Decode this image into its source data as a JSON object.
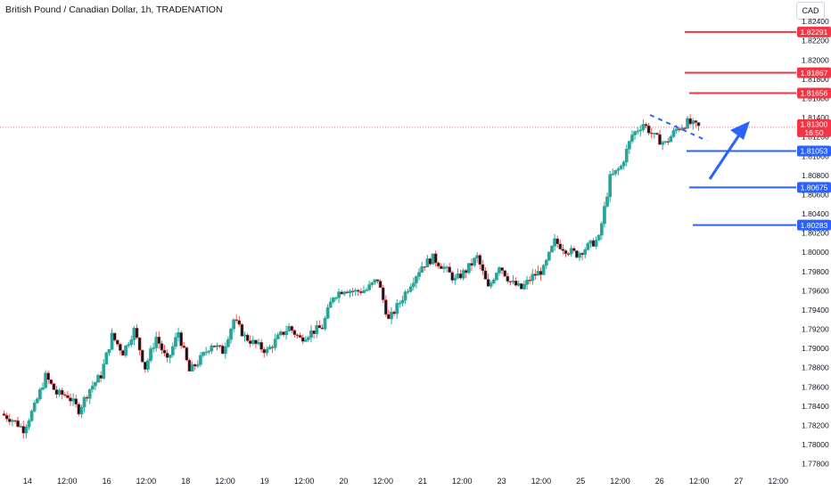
{
  "header": {
    "title": "British Pound / Canadian Dollar, 1h, TRADENATION",
    "currency": "CAD"
  },
  "colors": {
    "up": "#26a69a",
    "down": "#ef5350",
    "candle_body": "#131722",
    "support": "#2962ff",
    "resistance": "#f23645",
    "current_price_line": "#f23645",
    "arrow": "#2962ff"
  },
  "chart_data": {
    "type": "candlestick",
    "title": "British Pound / Canadian Dollar, 1h, TRADENATION",
    "x_tick_labels": [
      "14",
      "12:00",
      "16",
      "12:00",
      "18",
      "12:00",
      "19",
      "12:00",
      "20",
      "12:00",
      "21",
      "12:00",
      "23",
      "12:00",
      "25",
      "12:00",
      "26",
      "12:00",
      "27",
      "12:00"
    ],
    "y_tick_labels": [
      "1.82400",
      "1.82200",
      "1.82000",
      "1.81800",
      "1.81600",
      "1.81400",
      "1.81200",
      "1.81000",
      "1.80800",
      "1.80600",
      "1.80400",
      "1.80200",
      "1.80000",
      "1.79800",
      "1.79600",
      "1.79400",
      "1.79200",
      "1.79000",
      "1.78800",
      "1.78600",
      "1.78400",
      "1.78200",
      "1.78000",
      "1.77800"
    ],
    "ylim": [
      1.7775,
      1.8242
    ],
    "grid": false,
    "price_path": [
      1.7832,
      1.7826,
      1.7816,
      1.7839,
      1.7871,
      1.7853,
      1.7851,
      1.7836,
      1.7858,
      1.7872,
      1.7913,
      1.7896,
      1.7919,
      1.788,
      1.7912,
      1.7886,
      1.7917,
      1.7876,
      1.7889,
      1.7905,
      1.7897,
      1.793,
      1.7912,
      1.7904,
      1.7897,
      1.7911,
      1.7922,
      1.791,
      1.7917,
      1.7922,
      1.7955,
      1.7962,
      1.7959,
      1.7961,
      1.7972,
      1.7929,
      1.7948,
      1.7968,
      1.7986,
      1.7994,
      1.7984,
      1.7971,
      1.7981,
      1.7995,
      1.7962,
      1.7987,
      1.7969,
      1.7962,
      1.7975,
      1.7982,
      1.8011,
      1.8003,
      1.7998,
      1.8006,
      1.8014,
      1.8077,
      1.8089,
      1.8122,
      1.8134,
      1.812,
      1.8113,
      1.8128,
      1.8135,
      1.813
    ],
    "last_price": "1.81300",
    "countdown": "16:50",
    "horizontal_levels": [
      {
        "price": 1.82291,
        "label": "1.82291",
        "kind": "resistance"
      },
      {
        "price": 1.81867,
        "label": "1.81867",
        "kind": "resistance"
      },
      {
        "price": 1.81656,
        "label": "1.81656",
        "kind": "resistance"
      },
      {
        "price": 1.81053,
        "label": "1.81053",
        "kind": "support"
      },
      {
        "price": 1.80675,
        "label": "1.80675",
        "kind": "support"
      },
      {
        "price": 1.80283,
        "label": "1.80283",
        "kind": "support"
      }
    ],
    "annotations": [
      "dashed trend line across recent highs",
      "upward arrow projection"
    ]
  }
}
